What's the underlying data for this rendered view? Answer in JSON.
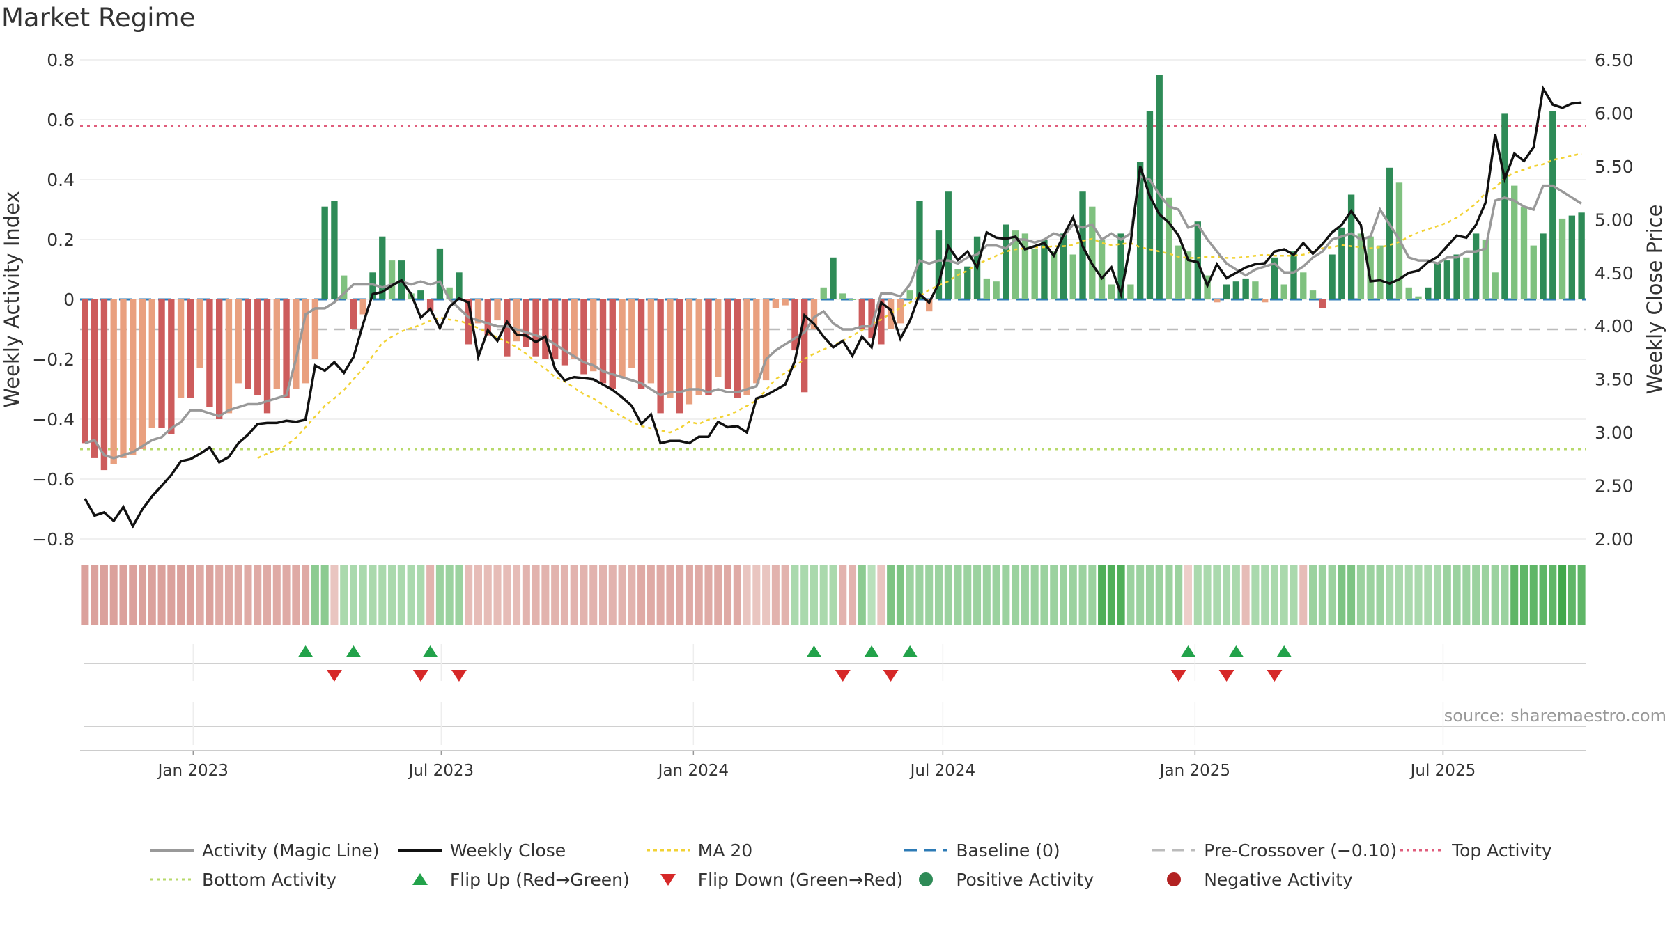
{
  "title": "Market Regime",
  "source_text": "source: sharemaestro.com",
  "colors": {
    "magic_line": "#999999",
    "weekly_close": "#111111",
    "ma20": "#f2d233",
    "baseline": "#2d7bb6",
    "pre_crossover": "#bbbbbb",
    "top_activity": "#e05d7c",
    "bottom_activity": "#b7d96a",
    "flip_up": "#22a24a",
    "flip_down": "#d62828",
    "positive": "#2e8b57",
    "negative": "#b22222"
  },
  "legend": [
    {
      "key": "magic",
      "label": "Activity (Magic Line)",
      "icon": "solid-line"
    },
    {
      "key": "close",
      "label": "Weekly Close",
      "icon": "solid-line"
    },
    {
      "key": "ma20",
      "label": "MA 20",
      "icon": "dotted-line"
    },
    {
      "key": "baseline",
      "label": "Baseline (0)",
      "icon": "dashed-line"
    },
    {
      "key": "precross",
      "label": "Pre-Crossover (−0.10)",
      "icon": "dashed-line"
    },
    {
      "key": "top",
      "label": "Top Activity",
      "icon": "dotted-line"
    },
    {
      "key": "bottom",
      "label": "Bottom Activity",
      "icon": "dotted-line"
    },
    {
      "key": "flipup",
      "label": "Flip Up (Red→Green)",
      "icon": "triangle-up-icon"
    },
    {
      "key": "flipdown",
      "label": "Flip Down (Green→Red)",
      "icon": "triangle-down-icon"
    },
    {
      "key": "pos",
      "label": "Positive Activity",
      "icon": "circle-icon"
    },
    {
      "key": "neg",
      "label": "Negative Activity",
      "icon": "circle-icon"
    }
  ],
  "chart_data": {
    "type": "bar",
    "title": "Market Regime",
    "ylabel": "Weekly Activity Index",
    "y2label": "Weekly Close Price",
    "ylim": [
      -0.8,
      0.8
    ],
    "yticks": [
      "0.8",
      "0.6",
      "0.4",
      "0.2",
      "0",
      "−0.2",
      "−0.4",
      "−0.6",
      "−0.8"
    ],
    "y2lim": [
      2.0,
      6.5
    ],
    "y2ticks": [
      "6.50",
      "6.00",
      "5.50",
      "5.00",
      "4.50",
      "4.00",
      "3.50",
      "3.00",
      "2.50",
      "2.00"
    ],
    "x_start": "2022-10-14",
    "week_count": 157,
    "xticks": [
      {
        "label": "Jan 2023",
        "date": "2023-01-01"
      },
      {
        "label": "Jul 2023",
        "date": "2023-07-01"
      },
      {
        "label": "Jan 2024",
        "date": "2024-01-01"
      },
      {
        "label": "Jul 2024",
        "date": "2024-07-01"
      },
      {
        "label": "Jan 2025",
        "date": "2025-01-01"
      },
      {
        "label": "Jul 2025",
        "date": "2025-07-01"
      }
    ],
    "reference_lines": {
      "top_activity": 0.58,
      "bottom_activity": -0.5,
      "baseline": 0,
      "pre_crossover": -0.1
    },
    "activity": [
      -0.48,
      -0.53,
      -0.57,
      -0.55,
      -0.53,
      -0.52,
      -0.5,
      -0.43,
      -0.43,
      -0.45,
      -0.33,
      -0.33,
      -0.23,
      -0.36,
      -0.4,
      -0.38,
      -0.28,
      -0.3,
      -0.32,
      -0.38,
      -0.3,
      -0.33,
      -0.3,
      -0.28,
      -0.2,
      0.31,
      0.33,
      0.08,
      -0.1,
      -0.05,
      0.09,
      0.21,
      0.13,
      0.13,
      0.02,
      0.03,
      -0.04,
      0.17,
      0.04,
      0.09,
      -0.15,
      -0.08,
      -0.12,
      -0.07,
      -0.19,
      -0.14,
      -0.16,
      -0.19,
      -0.2,
      -0.2,
      -0.22,
      -0.2,
      -0.25,
      -0.24,
      -0.28,
      -0.3,
      -0.26,
      -0.23,
      -0.3,
      -0.28,
      -0.38,
      -0.33,
      -0.38,
      -0.35,
      -0.32,
      -0.32,
      -0.26,
      -0.3,
      -0.33,
      -0.32,
      -0.28,
      -0.27,
      -0.03,
      -0.02,
      -0.17,
      -0.31,
      -0.1,
      0.04,
      0.14,
      0.02,
      0.0,
      -0.1,
      -0.13,
      -0.15,
      -0.1,
      -0.08,
      0.03,
      0.33,
      -0.04,
      0.23,
      0.36,
      0.1,
      0.11,
      0.21,
      0.07,
      0.06,
      0.25,
      0.23,
      0.22,
      0.17,
      0.2,
      0.16,
      0.22,
      0.15,
      0.36,
      0.31,
      0.2,
      0.05,
      0.22,
      0.05,
      0.46,
      0.63,
      0.75,
      0.34,
      0.18,
      0.16,
      0.26,
      0.08,
      -0.01,
      0.05,
      0.06,
      0.07,
      0.06,
      -0.01,
      0.14,
      0.05,
      0.16,
      0.09,
      0.03,
      -0.03,
      0.15,
      0.24,
      0.35,
      0.22,
      0.21,
      0.18,
      0.44,
      0.39,
      0.04,
      0.01,
      0.04,
      0.12,
      0.13,
      0.15,
      0.14,
      0.22,
      0.2,
      0.09,
      0.62,
      0.38,
      0.31,
      0.18,
      0.22,
      0.63,
      0.27,
      0.28,
      0.29
    ],
    "magic_line": [
      -0.48,
      -0.47,
      -0.52,
      -0.53,
      -0.52,
      -0.51,
      -0.49,
      -0.47,
      -0.46,
      -0.43,
      -0.41,
      -0.37,
      -0.37,
      -0.38,
      -0.39,
      -0.37,
      -0.36,
      -0.35,
      -0.35,
      -0.34,
      -0.33,
      -0.32,
      -0.2,
      -0.05,
      -0.03,
      -0.03,
      -0.01,
      0.02,
      0.05,
      0.05,
      0.05,
      0.04,
      0.05,
      0.06,
      0.05,
      0.06,
      0.05,
      0.06,
      0.0,
      -0.03,
      -0.06,
      -0.07,
      -0.08,
      -0.09,
      -0.09,
      -0.1,
      -0.11,
      -0.12,
      -0.13,
      -0.15,
      -0.17,
      -0.19,
      -0.21,
      -0.22,
      -0.24,
      -0.25,
      -0.26,
      -0.27,
      -0.28,
      -0.3,
      -0.32,
      -0.31,
      -0.31,
      -0.3,
      -0.3,
      -0.31,
      -0.3,
      -0.31,
      -0.31,
      -0.3,
      -0.29,
      -0.2,
      -0.17,
      -0.15,
      -0.13,
      -0.11,
      -0.06,
      -0.04,
      -0.08,
      -0.1,
      -0.1,
      -0.09,
      -0.09,
      0.02,
      0.02,
      0.01,
      0.05,
      0.13,
      0.12,
      0.13,
      0.13,
      0.12,
      0.14,
      0.15,
      0.18,
      0.18,
      0.17,
      0.2,
      0.2,
      0.19,
      0.2,
      0.22,
      0.21,
      0.25,
      0.24,
      0.25,
      0.2,
      0.22,
      0.2,
      0.22,
      0.41,
      0.4,
      0.35,
      0.31,
      0.3,
      0.24,
      0.25,
      0.2,
      0.16,
      0.12,
      0.1,
      0.08,
      0.1,
      0.11,
      0.12,
      0.09,
      0.09,
      0.11,
      0.14,
      0.16,
      0.2,
      0.21,
      0.22,
      0.2,
      0.21,
      0.3,
      0.25,
      0.2,
      0.14,
      0.13,
      0.13,
      0.12,
      0.14,
      0.14,
      0.16,
      0.16,
      0.17,
      0.33,
      0.34,
      0.33,
      0.31,
      0.3,
      0.38,
      0.38,
      0.36,
      0.34,
      0.32
    ],
    "weekly_close": [
      2.38,
      2.22,
      2.25,
      2.17,
      2.3,
      2.12,
      2.28,
      2.4,
      2.5,
      2.6,
      2.73,
      2.75,
      2.8,
      2.86,
      2.72,
      2.77,
      2.9,
      2.98,
      3.08,
      3.09,
      3.09,
      3.11,
      3.1,
      3.12,
      3.63,
      3.58,
      3.66,
      3.56,
      3.71,
      4.02,
      4.3,
      4.32,
      4.38,
      4.43,
      4.3,
      4.08,
      4.16,
      3.98,
      4.18,
      4.26,
      4.22,
      3.71,
      3.96,
      3.86,
      4.04,
      3.92,
      3.91,
      3.85,
      3.9,
      3.6,
      3.49,
      3.52,
      3.51,
      3.5,
      3.45,
      3.4,
      3.33,
      3.25,
      3.08,
      3.17,
      2.9,
      2.92,
      2.92,
      2.9,
      2.96,
      2.96,
      3.1,
      3.05,
      3.06,
      3.0,
      3.32,
      3.35,
      3.4,
      3.45,
      3.67,
      4.1,
      4.02,
      3.9,
      3.8,
      3.86,
      3.72,
      3.9,
      3.8,
      4.22,
      4.15,
      3.88,
      4.05,
      4.3,
      4.22,
      4.4,
      4.75,
      4.62,
      4.7,
      4.55,
      4.88,
      4.83,
      4.82,
      4.84,
      4.72,
      4.75,
      4.78,
      4.66,
      4.85,
      5.02,
      4.75,
      4.58,
      4.45,
      4.55,
      4.3,
      4.78,
      5.5,
      5.22,
      5.05,
      4.97,
      4.85,
      4.62,
      4.6,
      4.38,
      4.58,
      4.45,
      4.5,
      4.55,
      4.58,
      4.59,
      4.7,
      4.72,
      4.67,
      4.78,
      4.68,
      4.77,
      4.88,
      4.95,
      5.08,
      4.95,
      4.42,
      4.43,
      4.4,
      4.44,
      4.5,
      4.52,
      4.6,
      4.65,
      4.75,
      4.85,
      4.83,
      4.95,
      5.16,
      5.8,
      5.38,
      5.62,
      5.55,
      5.68,
      6.23,
      6.08,
      6.05,
      6.09,
      6.1
    ],
    "ma20_close": [
      null,
      null,
      null,
      null,
      null,
      null,
      null,
      null,
      null,
      null,
      null,
      null,
      null,
      null,
      null,
      null,
      null,
      null,
      2.76,
      2.8,
      2.84,
      2.88,
      2.95,
      3.05,
      3.15,
      3.25,
      3.32,
      3.4,
      3.5,
      3.6,
      3.72,
      3.84,
      3.9,
      3.95,
      3.98,
      4.01,
      4.05,
      4.08,
      4.06,
      4.05,
      4.02,
      3.98,
      3.94,
      3.89,
      3.85,
      3.8,
      3.74,
      3.66,
      3.6,
      3.52,
      3.48,
      3.42,
      3.36,
      3.32,
      3.26,
      3.2,
      3.15,
      3.1,
      3.06,
      3.04,
      3.02,
      3.0,
      3.04,
      3.1,
      3.08,
      3.12,
      3.14,
      3.16,
      3.2,
      3.25,
      3.3,
      3.4,
      3.5,
      3.56,
      3.62,
      3.69,
      3.74,
      3.78,
      3.82,
      3.86,
      3.91,
      3.96,
      4.02,
      4.06,
      4.12,
      4.17,
      4.22,
      4.28,
      4.34,
      4.38,
      4.42,
      4.48,
      4.52,
      4.58,
      4.62,
      4.66,
      4.7,
      4.72,
      4.73,
      4.74,
      4.74,
      4.75,
      4.75,
      4.76,
      4.8,
      4.82,
      4.78,
      4.76,
      4.77,
      4.78,
      4.74,
      4.72,
      4.7,
      4.68,
      4.65,
      4.64,
      4.64,
      4.65,
      4.65,
      4.64,
      4.64,
      4.65,
      4.66,
      4.67,
      4.66,
      4.66,
      4.66,
      4.67,
      4.7,
      4.73,
      4.74,
      4.76,
      4.75,
      4.74,
      4.73,
      4.74,
      4.76,
      4.79,
      4.84,
      4.88,
      4.91,
      4.94,
      4.97,
      5.02,
      5.08,
      5.15,
      5.25,
      5.3,
      5.39,
      5.44,
      5.47,
      5.5,
      5.52,
      5.56,
      5.58,
      5.6,
      5.62
    ],
    "regime_strip": [
      -0.6,
      -0.6,
      -0.6,
      -0.6,
      -0.6,
      -0.6,
      -0.6,
      -0.6,
      -0.6,
      -0.6,
      -0.6,
      -0.6,
      -0.5,
      -0.6,
      -0.5,
      -0.5,
      -0.5,
      -0.5,
      -0.5,
      -0.5,
      -0.5,
      -0.5,
      -0.5,
      -0.5,
      0.5,
      0.5,
      -0.2,
      0.3,
      0.3,
      0.3,
      0.3,
      0.3,
      0.3,
      0.3,
      0.3,
      0.3,
      -0.4,
      0.4,
      0.4,
      0.4,
      -0.3,
      -0.3,
      -0.3,
      -0.3,
      -0.3,
      -0.3,
      -0.4,
      -0.4,
      -0.4,
      -0.4,
      -0.4,
      -0.4,
      -0.4,
      -0.4,
      -0.4,
      -0.4,
      -0.4,
      -0.4,
      -0.5,
      -0.5,
      -0.5,
      -0.5,
      -0.5,
      -0.5,
      -0.5,
      -0.5,
      -0.5,
      -0.5,
      -0.5,
      -0.2,
      -0.2,
      -0.2,
      -0.4,
      -0.4,
      0.3,
      0.3,
      0.3,
      0.3,
      0.3,
      -0.4,
      -0.4,
      0.5,
      0.2,
      -0.2,
      0.6,
      0.6,
      0.4,
      0.4,
      0.4,
      0.4,
      0.4,
      0.4,
      0.4,
      0.4,
      0.4,
      0.4,
      0.4,
      0.4,
      0.4,
      0.4,
      0.4,
      0.4,
      0.4,
      0.4,
      0.4,
      0.4,
      0.9,
      0.9,
      0.9,
      0.4,
      0.4,
      0.4,
      0.4,
      0.4,
      0.4,
      -0.1,
      0.3,
      0.3,
      0.3,
      0.3,
      0.3,
      -0.3,
      0.3,
      0.3,
      0.3,
      0.3,
      0.3,
      -0.3,
      0.4,
      0.4,
      0.4,
      0.6,
      0.6,
      0.4,
      0.4,
      0.4,
      0.3,
      0.3,
      0.3,
      0.3,
      0.3,
      0.3,
      0.4,
      0.4,
      0.4,
      0.4,
      0.4,
      0.4,
      0.4,
      0.8,
      0.8,
      0.8,
      0.8,
      0.8,
      1.0,
      0.8,
      0.8
    ],
    "flip_up_weeks": [
      23,
      28,
      36,
      76,
      82,
      86,
      115,
      120,
      125
    ],
    "flip_down_weeks": [
      26,
      35,
      39,
      79,
      84,
      114,
      119,
      124
    ]
  }
}
